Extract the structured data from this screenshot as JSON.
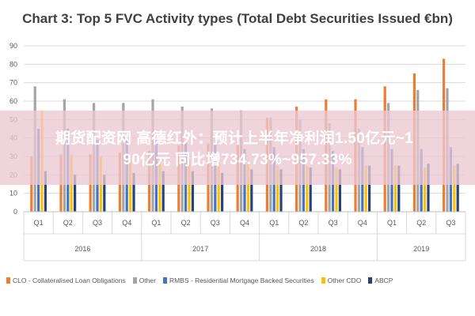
{
  "overlay_caption": {
    "line1": "期货配资网 高德红外：预计上半年净利润1.50亿元~1",
    "line2": "90亿元 同比增734.73%~957.33%"
  },
  "chart_data": {
    "type": "bar",
    "title": "Chart 3: Top 5 FVC Activity types (Total Debt Securities Issued €bn)",
    "ylim": [
      0,
      90
    ],
    "yticks": [
      0,
      10,
      20,
      30,
      40,
      50,
      60,
      70,
      80,
      90
    ],
    "grid": true,
    "legend_position": "bottom",
    "categories": [
      "Q1",
      "Q2",
      "Q3",
      "Q4",
      "Q1",
      "Q2",
      "Q3",
      "Q4",
      "Q1",
      "Q2",
      "Q3",
      "Q4",
      "Q1",
      "Q2",
      "Q3"
    ],
    "year_groups": [
      {
        "label": "2016",
        "count": 4
      },
      {
        "label": "2017",
        "count": 4
      },
      {
        "label": "2018",
        "count": 4
      },
      {
        "label": "2019",
        "count": 3
      }
    ],
    "series": [
      {
        "name": "CLO - Collateralised Loan Obligations",
        "color": "#ED7D31",
        "values": [
          30,
          31,
          31,
          32,
          33,
          36,
          37,
          40,
          51,
          57,
          61,
          61,
          68,
          75,
          83
        ]
      },
      {
        "name": "Other",
        "color": "#A5A5A5",
        "values": [
          68,
          61,
          59,
          59,
          61,
          57,
          56,
          55,
          51,
          50,
          48,
          45,
          59,
          66,
          67
        ]
      },
      {
        "name": "RMBS - Residential Mortgage Backed Securities",
        "color": "#4472C4",
        "values": [
          45,
          45,
          39,
          40,
          39,
          38,
          37,
          34,
          35,
          34,
          33,
          35,
          34,
          34,
          35
        ]
      },
      {
        "name": "Other CDO",
        "color": "#FFC000",
        "values": [
          55,
          31,
          30,
          30,
          30,
          28,
          27,
          26,
          25,
          25,
          24,
          25,
          25,
          24,
          25
        ]
      },
      {
        "name": "ABCP",
        "color": "#264478",
        "values": [
          22,
          20,
          20,
          21,
          22,
          22,
          21,
          23,
          23,
          24,
          23,
          25,
          25,
          26,
          26
        ]
      }
    ]
  }
}
